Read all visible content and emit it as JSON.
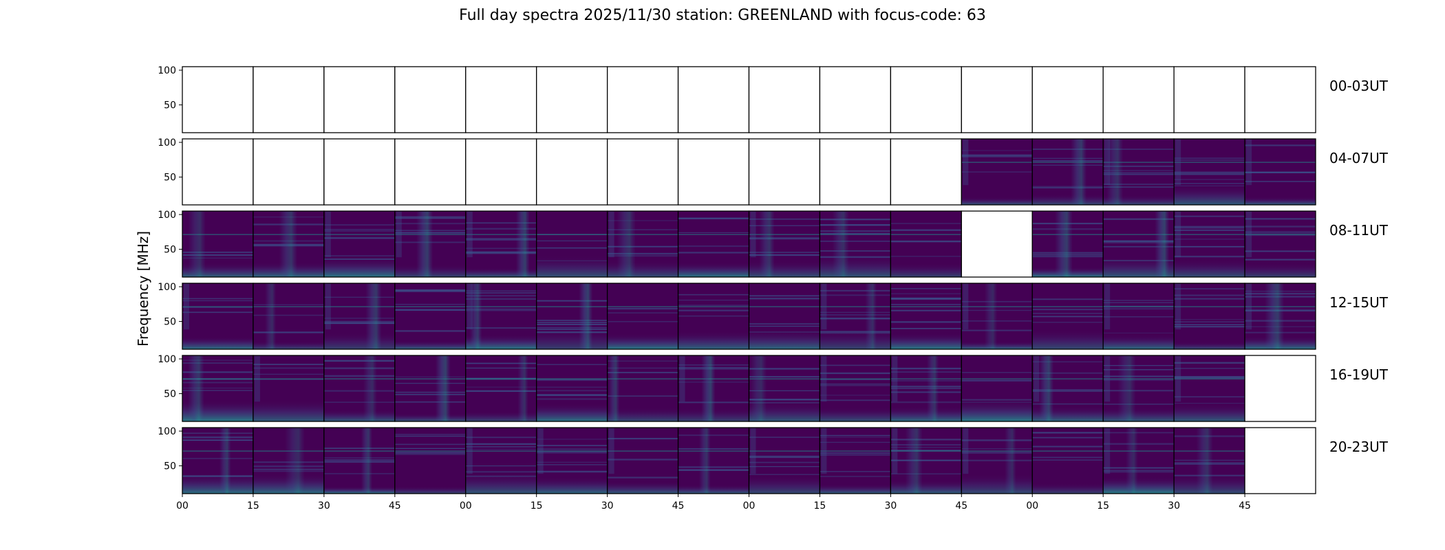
{
  "title": "Full day spectra 2025/11/30 station: GREENLAND with focus-code: 63",
  "chart_data": {
    "type": "heatmap",
    "title": "Full day spectra 2025/11/30 station: GREENLAND with focus-code: 63",
    "ylabel": "Frequency [MHz]",
    "ylim": [
      10,
      105
    ],
    "yticks": [
      50,
      100
    ],
    "xticks": [
      "00",
      "15",
      "30",
      "45",
      "00",
      "15",
      "30",
      "45",
      "00",
      "15",
      "30",
      "45",
      "00",
      "15",
      "30",
      "45"
    ],
    "colormap": [
      "#440154",
      "#3b528b",
      "#21918c",
      "#5ec962"
    ],
    "rows": [
      {
        "label": "00-03UT",
        "panels": [
          0,
          0,
          0,
          0,
          0,
          0,
          0,
          0,
          0,
          0,
          0,
          0,
          0,
          0,
          0,
          0
        ]
      },
      {
        "label": "04-07UT",
        "panels": [
          0,
          0,
          0,
          0,
          0,
          0,
          0,
          0,
          0,
          0,
          0,
          1,
          1,
          1,
          1,
          1
        ]
      },
      {
        "label": "08-11UT",
        "panels": [
          1,
          1,
          1,
          1,
          1,
          1,
          1,
          1,
          1,
          1,
          1,
          0,
          1,
          1,
          1,
          1
        ]
      },
      {
        "label": "12-15UT",
        "panels": [
          1,
          1,
          1,
          1,
          1,
          1,
          1,
          1,
          1,
          1,
          1,
          1,
          1,
          1,
          1,
          1
        ]
      },
      {
        "label": "16-19UT",
        "panels": [
          1,
          1,
          1,
          1,
          1,
          1,
          1,
          1,
          1,
          1,
          1,
          1,
          1,
          1,
          1,
          0
        ]
      },
      {
        "label": "20-23UT",
        "panels": [
          1,
          1,
          1,
          1,
          1,
          1,
          1,
          1,
          1,
          1,
          1,
          1,
          1,
          1,
          1,
          0
        ]
      }
    ]
  }
}
